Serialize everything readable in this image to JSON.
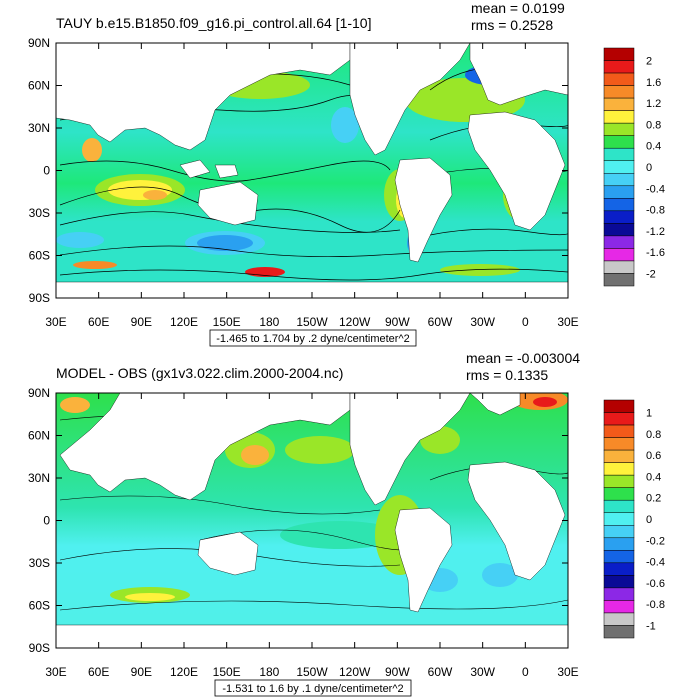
{
  "colors": {
    "land": "#ffffff",
    "ocean_base_top": "#2fe0c8",
    "ocean_base_bottom": "#1ee87a",
    "frame": "#000000"
  },
  "panels": [
    {
      "title": "TAUY b.e15.B1850.f09_g16.pi_control.all.64 [1-10]",
      "mean": "mean = 0.0199",
      "rms": "rms = 0.2528",
      "range_info": "-1.465 to 1.704 by .2 dyne/centimeter^2",
      "lat_labels": [
        "90N",
        "60N",
        "30N",
        "0",
        "30S",
        "60S",
        "90S"
      ],
      "lon_labels": [
        "30E",
        "60E",
        "90E",
        "120E",
        "150E",
        "180",
        "150W",
        "120W",
        "90W",
        "60W",
        "30W",
        "0",
        "30E"
      ],
      "colorbar_labels": [
        "2",
        "1.6",
        "1.2",
        "0.8",
        "0.4",
        "0",
        "-0.4",
        "-0.8",
        "-1.2",
        "-1.6",
        "-2"
      ],
      "colorbar_colors": [
        "#b40000",
        "#e81a1a",
        "#f25a1a",
        "#f78a28",
        "#fab23c",
        "#fff23c",
        "#9ae628",
        "#2ee04c",
        "#2ee4c8",
        "#50f0f0",
        "#46d0f5",
        "#2aa0f0",
        "#1464e6",
        "#0a1ec8",
        "#0a0a96",
        "#8c28e6",
        "#e628e6",
        "#c8c8c8",
        "#707070"
      ]
    },
    {
      "title": "MODEL - OBS (gx1v3.022.clim.2000-2004.nc)",
      "mean": "mean = -0.003004",
      "rms": "rms = 0.1335",
      "range_info": "-1.531 to 1.6 by .1 dyne/centimeter^2",
      "lat_labels": [
        "90N",
        "60N",
        "30N",
        "0",
        "30S",
        "60S",
        "90S"
      ],
      "lon_labels": [
        "30E",
        "60E",
        "90E",
        "120E",
        "150E",
        "180",
        "150W",
        "120W",
        "90W",
        "60W",
        "30W",
        "0",
        "30E"
      ],
      "colorbar_labels": [
        "1",
        "0.8",
        "0.6",
        "0.4",
        "0.2",
        "0",
        "-0.2",
        "-0.4",
        "-0.6",
        "-0.8",
        "-1"
      ],
      "colorbar_colors": [
        "#b40000",
        "#e81a1a",
        "#f25a1a",
        "#f78a28",
        "#fab23c",
        "#fff23c",
        "#9ae628",
        "#2ee04c",
        "#2ee4c8",
        "#50f0f0",
        "#46d0f5",
        "#2aa0f0",
        "#1464e6",
        "#0a1ec8",
        "#0a0a96",
        "#8c28e6",
        "#e628e6",
        "#c8c8c8",
        "#707070"
      ]
    }
  ]
}
